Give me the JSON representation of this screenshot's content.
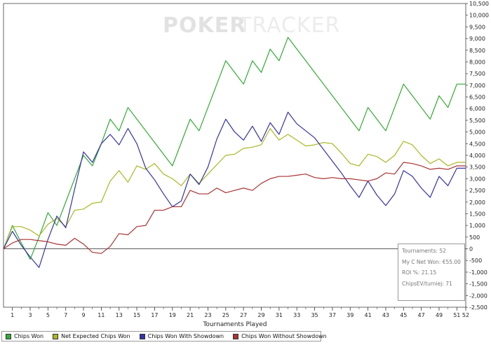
{
  "chart_data": {
    "type": "line",
    "xlabel": "Tournaments Played",
    "ylabel": "",
    "xlim": [
      0,
      52
    ],
    "ylim": [
      -2500,
      10500
    ],
    "x_ticks": [
      1,
      3,
      5,
      7,
      9,
      11,
      13,
      15,
      17,
      19,
      21,
      23,
      25,
      27,
      29,
      31,
      33,
      35,
      37,
      39,
      41,
      43,
      45,
      47,
      49,
      51,
      52
    ],
    "y_ticks": [
      -2500,
      -2000,
      -1500,
      -1000,
      -500,
      0,
      500,
      1000,
      1500,
      2000,
      2500,
      3000,
      3500,
      4000,
      4500,
      5000,
      5500,
      6000,
      6500,
      7000,
      7500,
      8000,
      8500,
      9000,
      9500,
      10000,
      10500
    ],
    "grid": false,
    "legend_position": "bottom",
    "x": [
      0,
      1,
      2,
      3,
      4,
      5,
      6,
      7,
      8,
      9,
      10,
      11,
      12,
      13,
      14,
      15,
      16,
      17,
      18,
      19,
      20,
      21,
      22,
      23,
      24,
      25,
      26,
      27,
      28,
      29,
      30,
      31,
      32,
      33,
      34,
      35,
      36,
      37,
      38,
      39,
      40,
      41,
      42,
      43,
      44,
      45,
      46,
      47,
      48,
      49,
      50,
      51,
      52
    ],
    "series": [
      {
        "name": "Chips Won",
        "color": "#33aa33",
        "values": [
          0,
          1000,
          250,
          -450,
          500,
          1550,
          1000,
          2000,
          3000,
          4000,
          3550,
          4500,
          5550,
          5050,
          6050,
          5550,
          5050,
          4550,
          4050,
          3550,
          4550,
          5550,
          5050,
          6050,
          7050,
          8050,
          7550,
          7050,
          8050,
          7550,
          8550,
          8050,
          9050,
          8550,
          8050,
          7550,
          7050,
          6550,
          6050,
          5550,
          5050,
          6050,
          5550,
          5050,
          6050,
          7050,
          6550,
          6050,
          5550,
          6550,
          6050,
          7050,
          7050
        ]
      },
      {
        "name": "Net Expected Chips Won",
        "color": "#aab822",
        "values": [
          0,
          950,
          950,
          800,
          550,
          1050,
          1300,
          950,
          1650,
          1700,
          1950,
          2000,
          2900,
          3350,
          2850,
          3550,
          3400,
          3650,
          3200,
          3000,
          2700,
          3200,
          2800,
          3200,
          3600,
          4000,
          4050,
          4300,
          4350,
          4450,
          5150,
          4650,
          4900,
          4650,
          4400,
          4450,
          4550,
          4500,
          4100,
          3650,
          3550,
          4050,
          3950,
          3700,
          4000,
          4600,
          4450,
          4000,
          3650,
          3850,
          3550,
          3700,
          3700
        ]
      },
      {
        "name": "Chips Won With Showdown",
        "color": "#3333aa",
        "values": [
          0,
          750,
          150,
          -350,
          -800,
          400,
          1400,
          900,
          2550,
          4150,
          3700,
          4500,
          4900,
          4450,
          5150,
          4500,
          3450,
          2950,
          2350,
          1800,
          2050,
          3200,
          2750,
          3500,
          4700,
          5550,
          5000,
          4650,
          5250,
          4600,
          5400,
          4900,
          5850,
          5350,
          5050,
          4750,
          4250,
          3750,
          3250,
          2700,
          2200,
          2900,
          2300,
          1850,
          2350,
          3350,
          3100,
          2600,
          2200,
          3100,
          2700,
          3450,
          3450
        ]
      },
      {
        "name": "Chips Won Without Showdown",
        "color": "#aa3333",
        "values": [
          0,
          250,
          400,
          400,
          350,
          300,
          200,
          150,
          450,
          200,
          -150,
          -200,
          100,
          650,
          600,
          950,
          1000,
          1650,
          1650,
          1800,
          1800,
          2500,
          2350,
          2350,
          2600,
          2400,
          2500,
          2600,
          2500,
          2800,
          3000,
          3100,
          3100,
          3150,
          3200,
          3050,
          3000,
          3050,
          3000,
          3000,
          2950,
          2900,
          3000,
          3250,
          3200,
          3700,
          3650,
          3550,
          3400,
          3450,
          3400,
          3550,
          3550
        ]
      }
    ]
  },
  "stats": {
    "tournaments": "Tournaments: 52",
    "net_won": "My C Net Won: €55.00",
    "roi": "ROI %: 21.15",
    "chips_ev": "ChipsEV/turniej: 71"
  },
  "watermark": {
    "brand_dark": "POKER",
    "brand_light": "TRACKER"
  }
}
